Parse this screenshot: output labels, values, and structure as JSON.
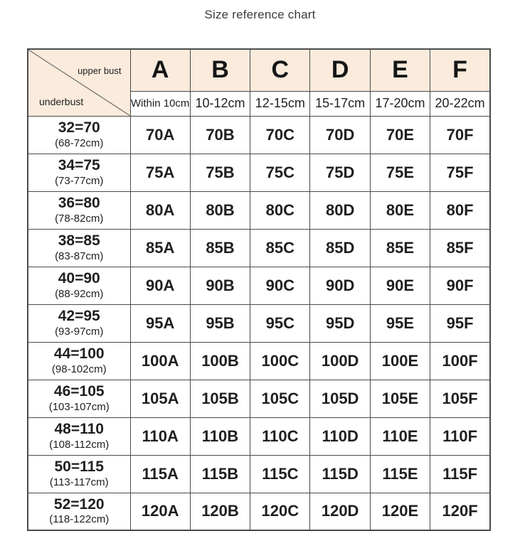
{
  "page": {
    "title": "Size reference chart"
  },
  "chart_data": {
    "type": "table",
    "title": "Size reference chart",
    "corner_labels": {
      "top": "upper bust",
      "bottom": "underbust"
    },
    "cup_columns": [
      {
        "cup": "A",
        "difference": "Within 10cm"
      },
      {
        "cup": "B",
        "difference": "10-12cm"
      },
      {
        "cup": "C",
        "difference": "12-15cm"
      },
      {
        "cup": "D",
        "difference": "15-17cm"
      },
      {
        "cup": "E",
        "difference": "17-20cm"
      },
      {
        "cup": "F",
        "difference": "20-22cm"
      }
    ],
    "rows": [
      {
        "underbust": "32=70",
        "underbust_range": "(68-72cm)",
        "sizes": [
          "70A",
          "70B",
          "70C",
          "70D",
          "70E",
          "70F"
        ]
      },
      {
        "underbust": "34=75",
        "underbust_range": "(73-77cm)",
        "sizes": [
          "75A",
          "75B",
          "75C",
          "75D",
          "75E",
          "75F"
        ]
      },
      {
        "underbust": "36=80",
        "underbust_range": "(78-82cm)",
        "sizes": [
          "80A",
          "80B",
          "80C",
          "80D",
          "80E",
          "80F"
        ]
      },
      {
        "underbust": "38=85",
        "underbust_range": "(83-87cm)",
        "sizes": [
          "85A",
          "85B",
          "85C",
          "85D",
          "85E",
          "85F"
        ]
      },
      {
        "underbust": "40=90",
        "underbust_range": "(88-92cm)",
        "sizes": [
          "90A",
          "90B",
          "90C",
          "90D",
          "90E",
          "90F"
        ]
      },
      {
        "underbust": "42=95",
        "underbust_range": "(93-97cm)",
        "sizes": [
          "95A",
          "95B",
          "95C",
          "95D",
          "95E",
          "95F"
        ]
      },
      {
        "underbust": "44=100",
        "underbust_range": "(98-102cm)",
        "sizes": [
          "100A",
          "100B",
          "100C",
          "100D",
          "100E",
          "100F"
        ]
      },
      {
        "underbust": "46=105",
        "underbust_range": "(103-107cm)",
        "sizes": [
          "105A",
          "105B",
          "105C",
          "105D",
          "105E",
          "105F"
        ]
      },
      {
        "underbust": "48=110",
        "underbust_range": "(108-112cm)",
        "sizes": [
          "110A",
          "110B",
          "110C",
          "110D",
          "110E",
          "110F"
        ]
      },
      {
        "underbust": "50=115",
        "underbust_range": "(113-117cm)",
        "sizes": [
          "115A",
          "115B",
          "115C",
          "115D",
          "115E",
          "115F"
        ]
      },
      {
        "underbust": "52=120",
        "underbust_range": "(118-122cm)",
        "sizes": [
          "120A",
          "120B",
          "120C",
          "120D",
          "120E",
          "120F"
        ]
      }
    ]
  },
  "colors": {
    "header_bg": "#faebdc",
    "border": "#4a4a4a",
    "text": "#1f1f1f",
    "title": "#3c3c3c",
    "diagonal": "#757575"
  }
}
